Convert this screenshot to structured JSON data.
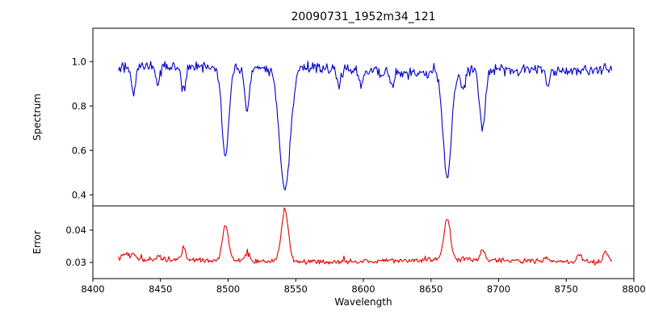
{
  "figure": {
    "title": "20090731_1952m34_121",
    "xlabel": "Wavelength",
    "spectrum_ylabel": "Spectrum",
    "error_ylabel": "Error"
  },
  "chart_data": {
    "type": "line",
    "title": "20090731_1952m34_121",
    "xlabel": "Wavelength",
    "grid": false,
    "legend": "none",
    "xlim": [
      8400,
      8800
    ],
    "xticks": [
      8400,
      8450,
      8500,
      8550,
      8600,
      8650,
      8700,
      8750,
      8800
    ],
    "xtick_labels": [
      "8400",
      "8450",
      "8500",
      "8550",
      "8600",
      "8650",
      "8700",
      "8750",
      "8800"
    ],
    "x_range_data": [
      8419,
      8784
    ],
    "panels": [
      {
        "name": "spectrum",
        "ylabel": "Spectrum",
        "color": "#0000cd",
        "ylim": [
          0.35,
          1.15
        ],
        "yticks": [
          0.4,
          0.6,
          0.8,
          1.0
        ],
        "ytick_labels": [
          "0.4",
          "0.6",
          "0.8",
          "1.0"
        ],
        "continuum": 0.965,
        "noise_amplitude": 0.03,
        "absorption_lines": [
          {
            "center": 8430,
            "depth": 0.13,
            "width": 1.6
          },
          {
            "center": 8448,
            "depth": 0.08,
            "width": 1.5
          },
          {
            "center": 8467,
            "depth": 0.11,
            "width": 1.6
          },
          {
            "center": 8498,
            "depth": 0.4,
            "width": 2.5
          },
          {
            "center": 8514,
            "depth": 0.18,
            "width": 1.8
          },
          {
            "center": 8542,
            "depth": 0.55,
            "width": 4.0
          },
          {
            "center": 8582,
            "depth": 0.07,
            "width": 1.5
          },
          {
            "center": 8598,
            "depth": 0.06,
            "width": 1.5
          },
          {
            "center": 8621,
            "depth": 0.06,
            "width": 1.5
          },
          {
            "center": 8662,
            "depth": 0.48,
            "width": 3.0
          },
          {
            "center": 8674,
            "depth": 0.08,
            "width": 1.5
          },
          {
            "center": 8688,
            "depth": 0.27,
            "width": 2.0
          },
          {
            "center": 8736,
            "depth": 0.06,
            "width": 1.5
          }
        ]
      },
      {
        "name": "error",
        "ylabel": "Error",
        "color": "#e60000",
        "ylim": [
          0.025,
          0.0475
        ],
        "yticks": [
          0.03,
          0.04
        ],
        "ytick_labels": [
          "0.03",
          "0.04"
        ],
        "baseline": 0.0305,
        "noise_amplitude": 0.001,
        "emission_peaks": [
          {
            "center": 8424,
            "amp": 0.0018,
            "width": 3.0
          },
          {
            "center": 8430,
            "amp": 0.0015,
            "width": 1.6
          },
          {
            "center": 8448,
            "amp": 0.0012,
            "width": 1.5
          },
          {
            "center": 8467,
            "amp": 0.0032,
            "width": 1.6
          },
          {
            "center": 8498,
            "amp": 0.011,
            "width": 2.2
          },
          {
            "center": 8514,
            "amp": 0.0022,
            "width": 1.8
          },
          {
            "center": 8542,
            "amp": 0.0165,
            "width": 2.6
          },
          {
            "center": 8662,
            "amp": 0.0128,
            "width": 2.4
          },
          {
            "center": 8688,
            "amp": 0.003,
            "width": 1.8
          },
          {
            "center": 8735,
            "amp": 0.0015,
            "width": 1.8
          },
          {
            "center": 8760,
            "amp": 0.0024,
            "width": 1.8
          },
          {
            "center": 8779,
            "amp": 0.0032,
            "width": 1.8
          }
        ]
      }
    ]
  }
}
